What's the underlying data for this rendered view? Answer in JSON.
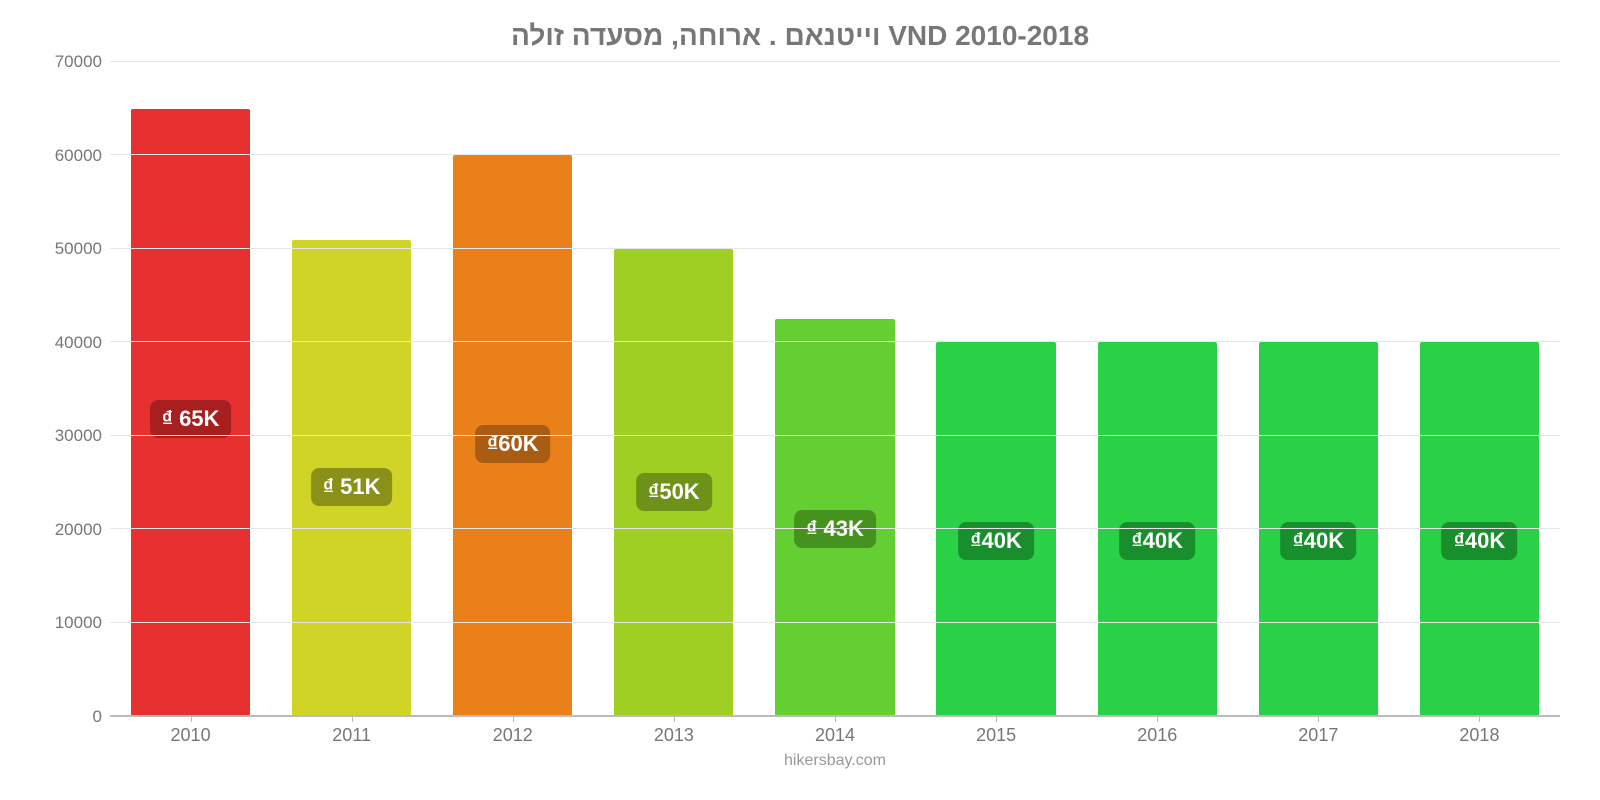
{
  "chart": {
    "type": "bar",
    "title": "וייטנאם . ארוחה, מסעדה זולה VND 2010-2018",
    "title_color": "#777777",
    "title_fontsize": 28,
    "background_color": "#ffffff",
    "grid_color": "#e6e6e6",
    "axis_line_color": "#bbbbbb",
    "tick_font_color": "#777777",
    "tick_fontsize": 17,
    "xtick_fontsize": 18,
    "ylim": [
      0,
      70000
    ],
    "ytick_step": 10000,
    "yticks": [
      0,
      10000,
      20000,
      30000,
      40000,
      50000,
      60000,
      70000
    ],
    "categories": [
      "2010",
      "2011",
      "2012",
      "2013",
      "2014",
      "2015",
      "2016",
      "2017",
      "2018"
    ],
    "values": [
      65000,
      51000,
      60000,
      50000,
      42500,
      40000,
      40000,
      40000,
      40000
    ],
    "bar_colors": [
      "#e73030",
      "#cfd426",
      "#ea801a",
      "#9ecf22",
      "#64cf33",
      "#2ad146",
      "#2ad146",
      "#2ad146",
      "#2ad146"
    ],
    "bar_labels": [
      "₫ 65K",
      "₫ 51K",
      "₫60K",
      "₫50K",
      "₫ 43K",
      "₫40K",
      "₫40K",
      "₫40K",
      "₫40K"
    ],
    "bar_label_bg": [
      "#a81f1f",
      "#8b9018",
      "#a95c12",
      "#6e9117",
      "#46921f",
      "#188f2c",
      "#188f2c",
      "#188f2c",
      "#188f2c"
    ],
    "bar_label_fontsize": 22,
    "bar_label_color": "#ffffff",
    "bar_width": 0.74,
    "attribution": "hikersbay.com",
    "attribution_color": "#999999"
  }
}
